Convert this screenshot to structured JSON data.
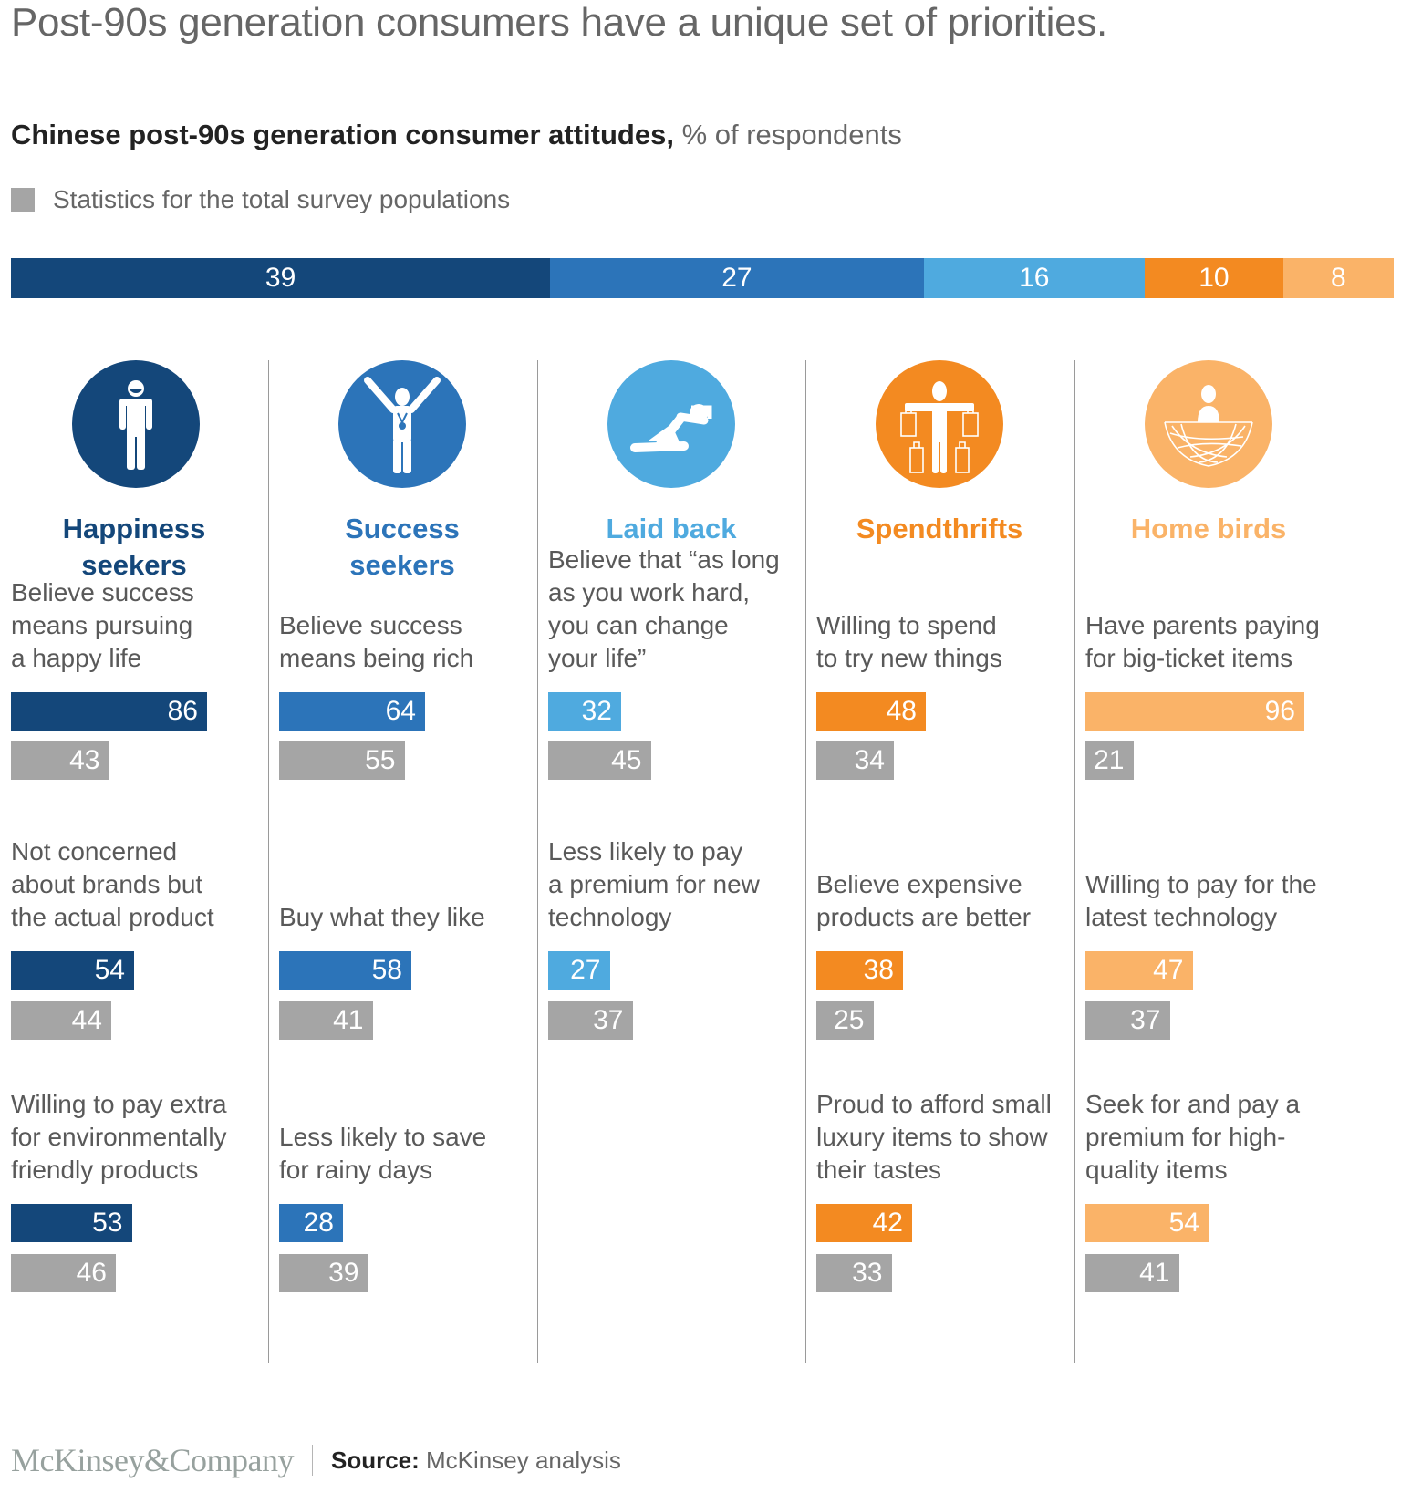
{
  "header": {
    "title": "Post-90s generation consumers have a unique set of priorities.",
    "subtitle_bold": "Chinese post-90s generation consumer attitudes,",
    "subtitle_unit": " % of respondents",
    "legend_label": "Statistics for the total survey populations"
  },
  "colors": {
    "happiness": "#14477a",
    "success": "#2c74b9",
    "laidback": "#4faadf",
    "spendthrifts": "#f38a21",
    "homebirds": "#fab368",
    "total": "#a5a5a5"
  },
  "chart_data": {
    "type": "bar",
    "title": "Chinese post-90s generation consumer attitudes",
    "unit": "% of respondents",
    "legend": [
      "Statistics for the total survey populations"
    ],
    "segment_share": {
      "categories": [
        "Happiness seekers",
        "Success seekers",
        "Laid back",
        "Spendthrifts",
        "Home birds"
      ],
      "values": [
        39,
        27,
        16,
        10,
        8
      ]
    },
    "segments": [
      {
        "name": "Happiness seekers",
        "name_lines": [
          "Happiness",
          "seekers"
        ],
        "icon": "smiling-person-icon",
        "color_key": "happiness",
        "items": [
          {
            "label": "Believe success\nmeans pursuing\na happy life",
            "segment": 86,
            "total": 43
          },
          {
            "label": "Not concerned\nabout brands but\nthe actual product",
            "segment": 54,
            "total": 44
          },
          {
            "label": "Willing to pay extra\nfor environmentally\nfriendly products",
            "segment": 53,
            "total": 46
          }
        ]
      },
      {
        "name": "Success seekers",
        "name_lines": [
          "Success",
          "seekers"
        ],
        "icon": "winner-with-medal-icon",
        "color_key": "success",
        "items": [
          {
            "label": "Believe success\nmeans being rich",
            "segment": 64,
            "total": 55
          },
          {
            "label": "Buy what they like",
            "segment": 58,
            "total": 41
          },
          {
            "label": "Less likely to save\nfor rainy days",
            "segment": 28,
            "total": 39
          }
        ]
      },
      {
        "name": "Laid back",
        "name_lines": [
          "Laid back"
        ],
        "icon": "reclining-person-icon",
        "color_key": "laidback",
        "items": [
          {
            "label": "Believe that “as long\nas you work hard,\nyou can change\nyour life”",
            "segment": 32,
            "total": 45
          },
          {
            "label": "Less likely to pay\na premium for new\ntechnology",
            "segment": 27,
            "total": 37
          }
        ]
      },
      {
        "name": "Spendthrifts",
        "name_lines": [
          "Spendthrifts"
        ],
        "icon": "person-with-shopping-bags-icon",
        "color_key": "spendthrifts",
        "items": [
          {
            "label": "Willing to spend\nto try new things",
            "segment": 48,
            "total": 34
          },
          {
            "label": "Believe expensive\nproducts are better",
            "segment": 38,
            "total": 25
          },
          {
            "label": "Proud to afford small\nluxury items to show\ntheir tastes",
            "segment": 42,
            "total": 33
          }
        ]
      },
      {
        "name": "Home birds",
        "name_lines": [
          "Home birds"
        ],
        "icon": "person-in-nest-icon",
        "color_key": "homebirds",
        "items": [
          {
            "label": "Have parents paying\nfor big-ticket items",
            "segment": 96,
            "total": 21
          },
          {
            "label": "Willing to pay for the\nlatest technology",
            "segment": 47,
            "total": 37
          },
          {
            "label": "Seek for and pay a\npremium for high-\nquality items",
            "segment": 54,
            "total": 41
          }
        ]
      }
    ],
    "xlim": [
      0,
      100
    ]
  },
  "footer": {
    "logo": "McKinsey&Company",
    "source_label": "Source:",
    "source_text": " McKinsey analysis"
  }
}
